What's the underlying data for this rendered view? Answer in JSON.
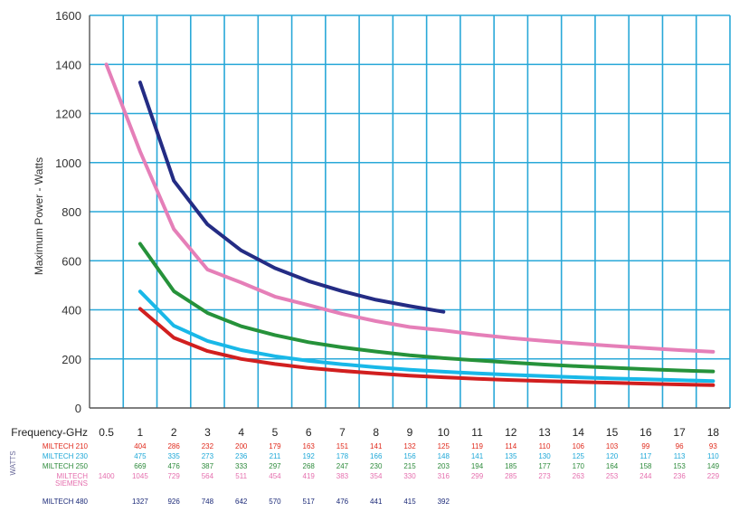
{
  "chart_data": {
    "type": "line",
    "ylabel": "Maximum Power - Watts",
    "xlabel": "Frequency-GHz",
    "units_label": "WATTS",
    "ylim": [
      0,
      1600
    ],
    "y_ticks": [
      "0",
      "200",
      "400",
      "600",
      "800",
      "1000",
      "1200",
      "1400",
      "1600"
    ],
    "categories": [
      "0.5",
      "1",
      "2",
      "3",
      "4",
      "5",
      "6",
      "7",
      "8",
      "9",
      "10",
      "11",
      "12",
      "13",
      "14",
      "15",
      "16",
      "17",
      "18"
    ],
    "grid": true,
    "colors": {
      "grid": "#29a8d8",
      "axis": "#555555"
    },
    "series": [
      {
        "name": "MILTECH 210",
        "color": "#e02a1c",
        "line_color": "#d11f1f",
        "labels": [
          "",
          "404",
          "286",
          "232",
          "200",
          "179",
          "163",
          "151",
          "141",
          "132",
          "125",
          "119",
          "114",
          "110",
          "106",
          "103",
          "99",
          "96",
          "93"
        ],
        "values": [
          null,
          404,
          286,
          232,
          200,
          179,
          163,
          151,
          141,
          132,
          125,
          119,
          114,
          110,
          106,
          103,
          99,
          96,
          93
        ]
      },
      {
        "name": "MILTECH 230",
        "color": "#1ea8d8",
        "line_color": "#19b8e8",
        "labels": [
          "",
          "475",
          "335",
          "273",
          "236",
          "211",
          "192",
          "178",
          "166",
          "156",
          "148",
          "141",
          "135",
          "130",
          "125",
          "120",
          "117",
          "113",
          "110"
        ],
        "values": [
          null,
          475,
          335,
          273,
          236,
          211,
          192,
          178,
          166,
          156,
          148,
          141,
          135,
          130,
          125,
          120,
          117,
          113,
          110
        ]
      },
      {
        "name": "MILTECH 250",
        "color": "#2e8b3c",
        "line_color": "#26923a",
        "labels": [
          "",
          "669",
          "476",
          "387",
          "333",
          "297",
          "268",
          "247",
          "230",
          "215",
          "203",
          "194",
          "185",
          "177",
          "170",
          "164",
          "158",
          "153",
          "149"
        ],
        "values": [
          null,
          669,
          476,
          387,
          333,
          297,
          268,
          247,
          230,
          215,
          203,
          194,
          185,
          177,
          170,
          164,
          158,
          153,
          149
        ]
      },
      {
        "name": "MILTECH",
        "name_line2": "SIEMENS",
        "color": "#e56fae",
        "line_color": "#e57fb8",
        "labels": [
          "1400",
          "1045",
          "729",
          "564",
          "511",
          "454",
          "419",
          "383",
          "354",
          "330",
          "316",
          "299",
          "285",
          "273",
          "263",
          "253",
          "244",
          "236",
          "229"
        ],
        "values": [
          1400,
          1045,
          729,
          564,
          511,
          454,
          419,
          383,
          354,
          330,
          316,
          299,
          285,
          273,
          263,
          253,
          244,
          236,
          229
        ]
      },
      {
        "name": "MILTECH 480",
        "color": "#1c2a78",
        "line_color": "#242c84",
        "labels": [
          "",
          "1327",
          "926",
          "748",
          "642",
          "570",
          "517",
          "476",
          "441",
          "415",
          "392",
          "",
          "",
          "",
          "",
          "",
          "",
          "",
          ""
        ],
        "values": [
          null,
          1327,
          926,
          748,
          642,
          570,
          517,
          476,
          441,
          415,
          392,
          null,
          null,
          null,
          null,
          null,
          null,
          null,
          null
        ]
      }
    ]
  }
}
